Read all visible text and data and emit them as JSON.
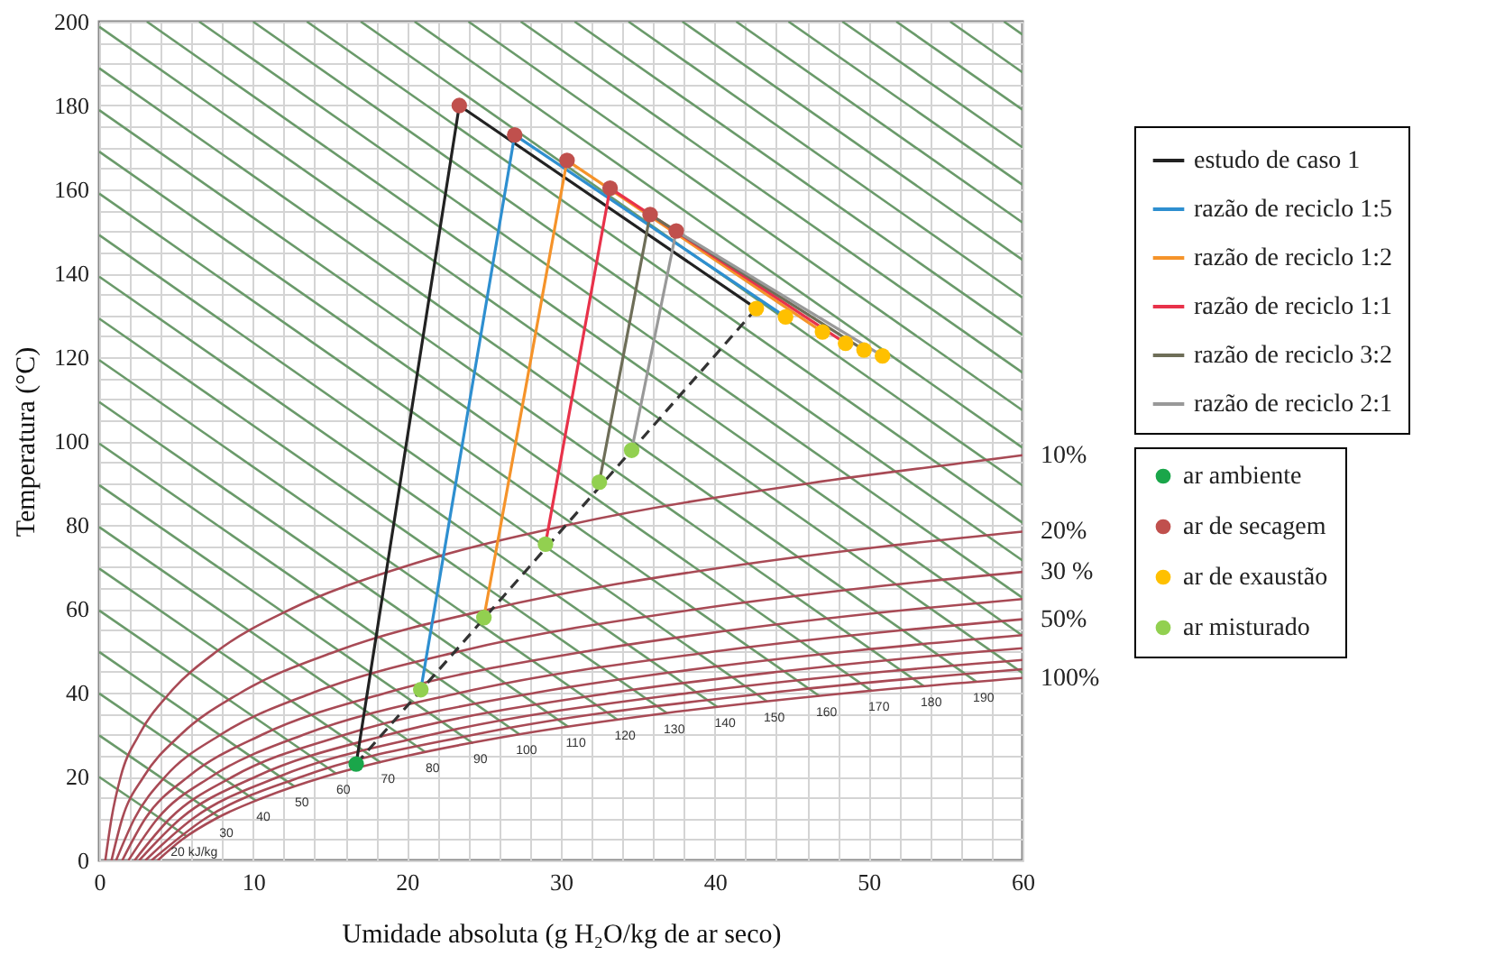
{
  "chart_data": {
    "type": "line",
    "xlabel": "Umidade absoluta (g H₂O/kg de ar seco)",
    "ylabel": "Temperatura (°C)",
    "xlim": [
      0,
      60
    ],
    "ylim": [
      0,
      200
    ],
    "xticks": [
      0,
      {
        "value": 2,
        "label": null
      },
      {
        "value": 4,
        "label": null
      },
      {
        "value": 6,
        "label": null
      },
      {
        "value": 8,
        "label": null
      },
      10,
      {
        "value": 12,
        "label": null
      },
      {
        "value": 14,
        "label": null
      },
      {
        "value": 16,
        "label": null
      },
      {
        "value": 18,
        "label": null
      },
      20,
      {
        "value": 22,
        "label": null
      },
      {
        "value": 24,
        "label": null
      },
      {
        "value": 26,
        "label": null
      },
      {
        "value": 28,
        "label": null
      },
      30,
      {
        "value": 32,
        "label": null
      },
      {
        "value": 34,
        "label": null
      },
      {
        "value": 36,
        "label": null
      },
      {
        "value": 38,
        "label": null
      },
      40,
      {
        "value": 42,
        "label": null
      },
      {
        "value": 44,
        "label": null
      },
      {
        "value": 46,
        "label": null
      },
      {
        "value": 48,
        "label": null
      },
      50,
      {
        "value": 52,
        "label": null
      },
      {
        "value": 54,
        "label": null
      },
      {
        "value": 56,
        "label": null
      },
      {
        "value": 58,
        "label": null
      },
      60
    ],
    "yticks": [
      0,
      {
        "value": 5,
        "label": null
      },
      {
        "value": 10,
        "label": null
      },
      {
        "value": 15,
        "label": null
      },
      20,
      {
        "value": 25,
        "label": null
      },
      {
        "value": 30,
        "label": null
      },
      {
        "value": 35,
        "label": null
      },
      40,
      {
        "value": 45,
        "label": null
      },
      {
        "value": 50,
        "label": null
      },
      {
        "value": 55,
        "label": null
      },
      60,
      {
        "value": 65,
        "label": null
      },
      {
        "value": 70,
        "label": null
      },
      {
        "value": 75,
        "label": null
      },
      80,
      {
        "value": 85,
        "label": null
      },
      {
        "value": 90,
        "label": null
      },
      {
        "value": 95,
        "label": null
      },
      100,
      {
        "value": 105,
        "label": null
      },
      {
        "value": 110,
        "label": null
      },
      {
        "value": 115,
        "label": null
      },
      120,
      {
        "value": 125,
        "label": null
      },
      {
        "value": 130,
        "label": null
      },
      {
        "value": 135,
        "label": null
      },
      140,
      {
        "value": 145,
        "label": null
      },
      {
        "value": 150,
        "label": null
      },
      {
        "value": 155,
        "label": null
      },
      160,
      {
        "value": 165,
        "label": null
      },
      {
        "value": 170,
        "label": null
      },
      {
        "value": 175,
        "label": null
      },
      180,
      {
        "value": 185,
        "label": null
      },
      {
        "value": 190,
        "label": null
      },
      {
        "value": 195,
        "label": null
      },
      200
    ],
    "grid": true,
    "legend": "right",
    "series": [
      {
        "color": "#6a9a6a",
        "x": [
          0,
          5.7
        ],
        "values": [
          19.9,
          5.7
        ]
      },
      {
        "color": "#6a9a6a",
        "x": [
          0,
          7.8
        ],
        "values": [
          29.8,
          10.3
        ]
      },
      {
        "color": "#6a9a6a",
        "x": [
          0,
          10.2
        ],
        "values": [
          39.8,
          14.2
        ]
      },
      {
        "color": "#6a9a6a",
        "x": [
          0,
          12.7
        ],
        "values": [
          49.7,
          17.6
        ]
      },
      {
        "color": "#6a9a6a",
        "x": [
          0,
          15.4
        ],
        "values": [
          59.6,
          20.7
        ]
      },
      {
        "color": "#6a9a6a",
        "x": [
          0,
          18.3
        ],
        "values": [
          69.6,
          23.3
        ]
      },
      {
        "color": "#6a9a6a",
        "x": [
          0,
          21.2
        ],
        "values": [
          79.5,
          25.8
        ]
      },
      {
        "color": "#6a9a6a",
        "x": [
          0,
          24.3
        ],
        "values": [
          89.5,
          27.9
        ]
      },
      {
        "color": "#6a9a6a",
        "x": [
          0,
          27.3
        ],
        "values": [
          99.4,
          30.1
        ]
      },
      {
        "color": "#6a9a6a",
        "x": [
          0,
          30.5
        ],
        "values": [
          109.3,
          31.8
        ]
      },
      {
        "color": "#6a9a6a",
        "x": [
          0,
          33.7
        ],
        "values": [
          119.3,
          33.5
        ]
      },
      {
        "color": "#6a9a6a",
        "x": [
          0,
          36.9
        ],
        "values": [
          129.2,
          35.1
        ]
      },
      {
        "color": "#6a9a6a",
        "x": [
          0,
          40.2
        ],
        "values": [
          139.2,
          36.5
        ]
      },
      {
        "color": "#6a9a6a",
        "x": [
          0,
          43.4
        ],
        "values": [
          149.1,
          37.9
        ]
      },
      {
        "color": "#6a9a6a",
        "x": [
          0,
          46.8
        ],
        "values": [
          159.0,
          39.2
        ]
      },
      {
        "color": "#6a9a6a",
        "x": [
          0,
          50.2
        ],
        "values": [
          169.0,
          40.4
        ]
      },
      {
        "color": "#6a9a6a",
        "x": [
          0,
          53.6
        ],
        "values": [
          178.9,
          41.5
        ]
      },
      {
        "color": "#6a9a6a",
        "x": [
          0,
          57.0
        ],
        "values": [
          188.9,
          42.6
        ]
      },
      {
        "color": "#6a9a6a",
        "x": [
          0,
          60
        ],
        "values": [
          198.8,
          44.7
        ]
      },
      {
        "color": "#6a9a6a",
        "x": [
          3.1,
          60
        ],
        "values": [
          200,
          53.6
        ]
      },
      {
        "color": "#6a9a6a",
        "x": [
          6.5,
          60
        ],
        "values": [
          200,
          62.6
        ]
      },
      {
        "color": "#6a9a6a",
        "x": [
          10.0,
          60
        ],
        "values": [
          200,
          71.5
        ]
      },
      {
        "color": "#6a9a6a",
        "x": [
          13.5,
          60
        ],
        "values": [
          200,
          80.5
        ]
      },
      {
        "color": "#6a9a6a",
        "x": [
          17.0,
          60
        ],
        "values": [
          200,
          89.4
        ]
      },
      {
        "color": "#6a9a6a",
        "x": [
          20.5,
          60
        ],
        "values": [
          200,
          98.4
        ]
      },
      {
        "color": "#6a9a6a",
        "x": [
          24.0,
          60
        ],
        "values": [
          200,
          107.3
        ]
      },
      {
        "color": "#6a9a6a",
        "x": [
          27.4,
          60
        ],
        "values": [
          200,
          116.3
        ]
      },
      {
        "color": "#6a9a6a",
        "x": [
          30.9,
          60
        ],
        "values": [
          200,
          125.3
        ]
      },
      {
        "color": "#6a9a6a",
        "x": [
          34.4,
          60
        ],
        "values": [
          200,
          134.2
        ]
      },
      {
        "color": "#6a9a6a",
        "x": [
          37.9,
          60
        ],
        "values": [
          200,
          143.2
        ]
      },
      {
        "color": "#6a9a6a",
        "x": [
          41.4,
          60
        ],
        "values": [
          200,
          152.1
        ]
      },
      {
        "color": "#6a9a6a",
        "x": [
          44.8,
          60
        ],
        "values": [
          200,
          161.1
        ]
      },
      {
        "color": "#6a9a6a",
        "x": [
          48.3,
          60
        ],
        "values": [
          200,
          170.0
        ]
      },
      {
        "color": "#6a9a6a",
        "x": [
          51.8,
          60
        ],
        "values": [
          200,
          179.0
        ]
      },
      {
        "color": "#6a9a6a",
        "x": [
          55.3,
          60
        ],
        "values": [
          200,
          187.9
        ]
      },
      {
        "color": "#6a9a6a",
        "x": [
          58.8,
          60
        ],
        "values": [
          200,
          196.9
        ]
      },
      {
        "color": "#a84a55",
        "x": [
          0.4,
          0.8,
          1.4,
          2.6,
          4.6,
          7.7,
          12.5,
          19.8,
          30.5,
          46.3,
          56.6,
          60
        ],
        "values": [
          0,
          10,
          20,
          30,
          40,
          50,
          60,
          70,
          80,
          90,
          95,
          96.6
        ]
      },
      {
        "color": "#a84a55",
        "x": [
          0.8,
          1.5,
          2.9,
          5.3,
          9.2,
          15.5,
          25.5,
          40.8,
          51.3,
          60
        ],
        "values": [
          0,
          10,
          20,
          30,
          40,
          50,
          60,
          70,
          75,
          78.4
        ]
      },
      {
        "color": "#a84a55",
        "x": [
          1.1,
          2.3,
          4.3,
          7.9,
          13.9,
          23.6,
          39.0,
          49.8,
          60
        ],
        "values": [
          0,
          10,
          20,
          30,
          40,
          50,
          60,
          65,
          68.8
        ]
      },
      {
        "color": "#a84a55",
        "x": [
          1.5,
          3.0,
          5.8,
          10.6,
          18.7,
          31.9,
          41.3,
          53.2,
          60
        ],
        "values": [
          0,
          10,
          20,
          30,
          40,
          50,
          55,
          60,
          62.3
        ]
      },
      {
        "color": "#a84a55",
        "x": [
          1.9,
          3.8,
          7.3,
          13.3,
          23.5,
          40.4,
          52.5,
          60
        ],
        "values": [
          0,
          10,
          20,
          30,
          40,
          50,
          55,
          57.5
        ]
      },
      {
        "color": "#a84a55",
        "x": [
          2.3,
          4.6,
          8.7,
          16.0,
          28.4,
          37.5,
          49.1,
          60
        ],
        "values": [
          0,
          10,
          20,
          30,
          40,
          45,
          50,
          53.7
        ]
      },
      {
        "color": "#a84a55",
        "x": [
          2.6,
          5.3,
          10.2,
          18.8,
          33.4,
          44.2,
          58.0,
          60
        ],
        "values": [
          0,
          10,
          20,
          30,
          40,
          45,
          50,
          50.6
        ]
      },
      {
        "color": "#a84a55",
        "x": [
          3.0,
          6.1,
          11.7,
          21.6,
          38.5,
          51.0,
          60
        ],
        "values": [
          0,
          10,
          20,
          30,
          40,
          45,
          47.8
        ]
      },
      {
        "color": "#a84a55",
        "x": [
          3.4,
          6.9,
          13.2,
          24.4,
          43.7,
          60
        ],
        "values": [
          0,
          10,
          20,
          30,
          40,
          45.6
        ]
      },
      {
        "color": "#a84a55",
        "x": [
          3.8,
          5.4,
          7.6,
          10.7,
          14.7,
          20.1,
          27.2,
          36.6,
          48.9,
          60
        ],
        "values": [
          0,
          5,
          10,
          15,
          20,
          25,
          30,
          35,
          40,
          43.5
        ]
      },
      {
        "color": "#333333",
        "line_style": "dashed",
        "x": [
          16.7,
          42.7
        ],
        "values": [
          23,
          131.6
        ]
      },
      {
        "name": "estudo de caso 1",
        "color": "#222222",
        "x": [
          16.7,
          23.4,
          42.7
        ],
        "values": [
          23,
          180,
          131.6
        ]
      },
      {
        "name": "razão de reciclo 1:5",
        "color": "#2e8fd0",
        "x": [
          20.9,
          27.0,
          44.6
        ],
        "values": [
          40.7,
          173,
          129.6
        ]
      },
      {
        "name": "razão de reciclo 1:2",
        "color": "#f5932a",
        "x": [
          25.0,
          30.4,
          47.0
        ],
        "values": [
          57.9,
          166.9,
          126
        ]
      },
      {
        "name": "razão de reciclo 1:1",
        "color": "#e8324a",
        "x": [
          29.0,
          33.2,
          48.5
        ],
        "values": [
          75.4,
          160.3,
          123.3
        ]
      },
      {
        "name": "razão de reciclo 3:2",
        "color": "#6e6e58",
        "x": [
          32.5,
          35.8,
          49.7
        ],
        "values": [
          90.2,
          154,
          121.7
        ]
      },
      {
        "name": "razão de reciclo 2:1",
        "color": "#999999",
        "x": [
          34.6,
          37.5,
          50.9
        ],
        "values": [
          97.8,
          150.1,
          120.3
        ]
      },
      {
        "name": "ar ambiente",
        "type": "scatter",
        "marker": "circle",
        "color": "#1aa64a",
        "x": [
          16.7
        ],
        "values": [
          23
        ]
      },
      {
        "name": "ar de secagem",
        "type": "scatter",
        "marker": "circle",
        "color": "#c0504d",
        "x": [
          23.4,
          27.0,
          30.4,
          33.2,
          35.8,
          37.5
        ],
        "values": [
          180,
          173,
          166.9,
          160.3,
          154,
          150.1
        ]
      },
      {
        "name": "ar de exaustão",
        "type": "scatter",
        "marker": "circle",
        "color": "#ffc000",
        "x": [
          42.7,
          44.6,
          47.0,
          48.5,
          49.7,
          50.9
        ],
        "values": [
          131.6,
          129.6,
          126,
          123.3,
          121.7,
          120.3
        ]
      },
      {
        "name": "ar misturado",
        "type": "scatter",
        "marker": "circle",
        "color": "#92d050",
        "x": [
          20.9,
          25.0,
          29.0,
          32.5,
          34.6
        ],
        "values": [
          40.7,
          57.9,
          75.4,
          90.2,
          97.8
        ]
      }
    ],
    "annotations": [
      {
        "text": "10%",
        "x": 60,
        "y": 96.6
      },
      {
        "text": "20%",
        "x": 60,
        "y": 78.4
      },
      {
        "text": "30 %",
        "x": 60,
        "y": 68.8
      },
      {
        "text": "50%",
        "x": 60,
        "y": 57.5
      },
      {
        "text": "100%",
        "x": 60,
        "y": 43.5
      },
      {
        "text": "20 kJ/kg",
        "x": 5.7,
        "y": 5.7
      },
      {
        "text": "30",
        "x": 7.8,
        "y": 10.3
      },
      {
        "text": "40",
        "x": 10.2,
        "y": 14.2
      },
      {
        "text": "50",
        "x": 12.7,
        "y": 17.6
      },
      {
        "text": "60",
        "x": 15.4,
        "y": 20.7
      },
      {
        "text": "70",
        "x": 18.3,
        "y": 23.3
      },
      {
        "text": "80",
        "x": 21.2,
        "y": 25.8
      },
      {
        "text": "90",
        "x": 24.3,
        "y": 27.9
      },
      {
        "text": "100",
        "x": 27.3,
        "y": 30.1
      },
      {
        "text": "110",
        "x": 30.5,
        "y": 31.8
      },
      {
        "text": "120",
        "x": 33.7,
        "y": 33.5
      },
      {
        "text": "130",
        "x": 36.9,
        "y": 35.1
      },
      {
        "text": "140",
        "x": 40.2,
        "y": 36.5
      },
      {
        "text": "150",
        "x": 43.4,
        "y": 37.9
      },
      {
        "text": "160",
        "x": 46.8,
        "y": 39.2
      },
      {
        "text": "170",
        "x": 50.2,
        "y": 40.4
      },
      {
        "text": "180",
        "x": 53.6,
        "y": 41.5
      },
      {
        "text": "190",
        "x": 57.0,
        "y": 42.6
      }
    ]
  }
}
